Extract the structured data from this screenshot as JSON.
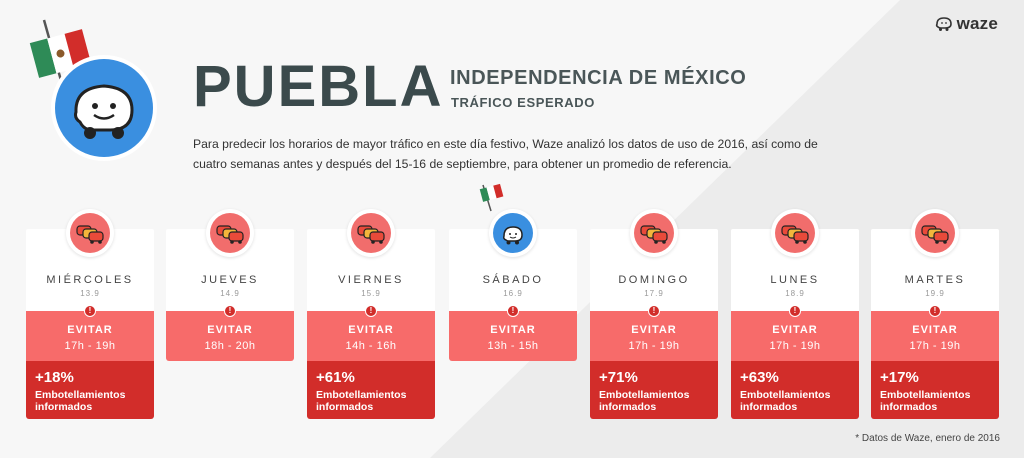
{
  "brand": {
    "name": "waze"
  },
  "header": {
    "city": "PUEBLA",
    "event": "INDEPENDENCIA DE MÉXICO",
    "subtitle": "TRÁFICO ESPERADO",
    "description": "Para predecir los horarios de mayor tráfico en este día festivo, Waze analizó los datos de uso de 2016, así como de cuatro semanas antes y después del 15-16 de septiembre, para obtener un promedio de referencia."
  },
  "colors": {
    "pink": "#f76b6a",
    "dark_red": "#d22d2a",
    "waze_blue": "#3a8fe0"
  },
  "days": [
    {
      "day": "MIÉRCOLES",
      "date": "13.9",
      "avoid": "EVITAR",
      "hours": "17h - 19h",
      "pct": "+18%",
      "pct_label": "Embotellamientos informados",
      "icon": "traffic-cars-icon"
    },
    {
      "day": "JUEVES",
      "date": "14.9",
      "avoid": "EVITAR",
      "hours": "18h - 20h",
      "icon": "traffic-cars-icon"
    },
    {
      "day": "VIERNES",
      "date": "15.9",
      "avoid": "EVITAR",
      "hours": "14h - 16h",
      "pct": "+61%",
      "pct_label": "Embotellamientos informados",
      "icon": "traffic-cars-icon"
    },
    {
      "day": "SÁBADO",
      "date": "16.9",
      "avoid": "EVITAR",
      "hours": "13h - 15h",
      "icon": "waze-mascot-flag-icon"
    },
    {
      "day": "DOMINGO",
      "date": "17.9",
      "avoid": "EVITAR",
      "hours": "17h - 19h",
      "pct": "+71%",
      "pct_label": "Embotellamientos informados",
      "icon": "traffic-cars-icon"
    },
    {
      "day": "LUNES",
      "date": "18.9",
      "avoid": "EVITAR",
      "hours": "17h - 19h",
      "pct": "+63%",
      "pct_label": "Embotellamientos informados",
      "icon": "traffic-cars-icon"
    },
    {
      "day": "MARTES",
      "date": "19.9",
      "avoid": "EVITAR",
      "hours": "17h - 19h",
      "pct": "+17%",
      "pct_label": "Embotellamientos informados",
      "icon": "traffic-cars-icon"
    }
  ],
  "footnote": "* Datos de Waze, enero de 2016"
}
